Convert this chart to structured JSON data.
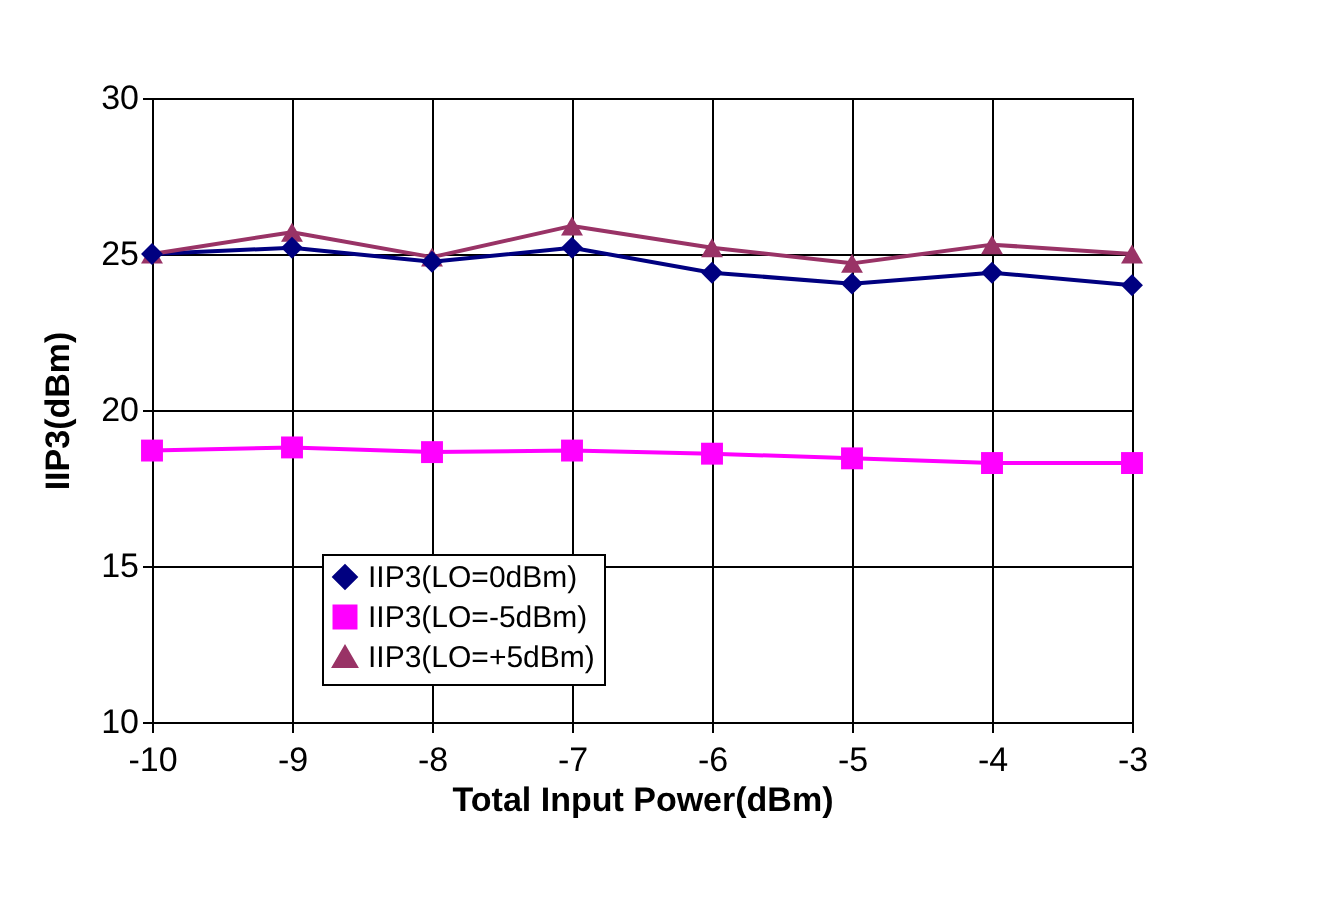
{
  "chart_data": {
    "type": "line",
    "xlabel": "Total Input Power(dBm)",
    "ylabel": "IIP3(dBm)",
    "x": [
      -10,
      -9,
      -8,
      -7,
      -6,
      -5,
      -4,
      -3
    ],
    "xlim": [
      -10,
      -3
    ],
    "xticks": [
      -10,
      -9,
      -8,
      -7,
      -6,
      -5,
      -4,
      -3
    ],
    "ylim": [
      10,
      30
    ],
    "yticks": [
      10,
      15,
      20,
      25,
      30
    ],
    "grid": true,
    "legend": "bottom",
    "series": [
      {
        "name": "IIP3(LO=0dBm)",
        "color": "#000080",
        "marker": "diamond",
        "values": [
          25.0,
          25.2,
          24.75,
          25.2,
          24.4,
          24.05,
          24.4,
          24.0
        ]
      },
      {
        "name": "IIP3(LO=-5dBm)",
        "color": "#ff00ff",
        "marker": "square",
        "values": [
          18.7,
          18.8,
          18.65,
          18.7,
          18.6,
          18.45,
          18.3,
          18.3
        ]
      },
      {
        "name": "IIP3(LO=+5dBm)",
        "color": "#993366",
        "marker": "triangle",
        "values": [
          25.0,
          25.7,
          24.9,
          25.9,
          25.2,
          24.7,
          25.3,
          25.0
        ]
      }
    ]
  }
}
